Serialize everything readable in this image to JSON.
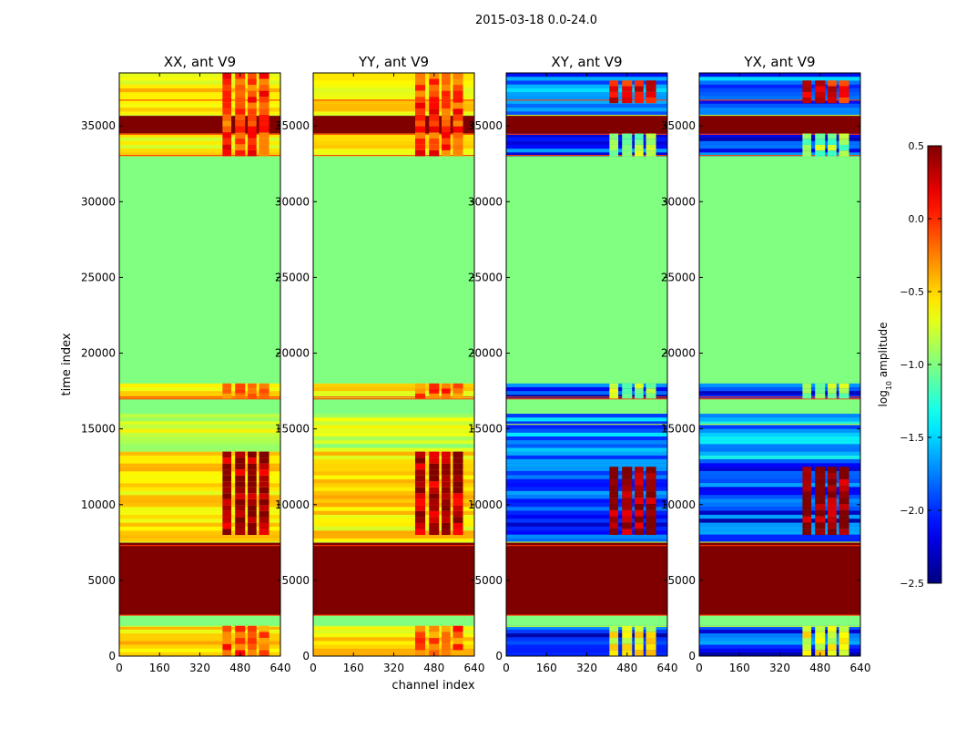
{
  "figure": {
    "suptitle": "2015-03-18 0.0-24.0",
    "ylabel": "time index",
    "xlabel": "channel index"
  },
  "chart_data": {
    "type": "heatmap",
    "colormap": "jet",
    "colorbar": {
      "label": "log10 amplitude",
      "label_main": "log",
      "label_sub": "10",
      "label_tail": " amplitude",
      "range": [
        -2.5,
        0.5
      ],
      "ticks": [
        "0.5",
        "0.0",
        "−0.5",
        "−1.0",
        "−1.5",
        "−2.0",
        "−2.5"
      ],
      "tick_values": [
        0.5,
        0.0,
        -0.5,
        -1.0,
        -1.5,
        -2.0,
        -2.5
      ]
    },
    "xlim": [
      0,
      640
    ],
    "ylim": [
      0,
      38500
    ],
    "xticks": [
      0,
      160,
      320,
      480,
      640
    ],
    "yticks": [
      0,
      5000,
      10000,
      15000,
      20000,
      25000,
      30000,
      35000
    ],
    "xticklabels": [
      "0",
      "160",
      "320",
      "480",
      "640"
    ],
    "yticklabels": [
      "0",
      "5000",
      "10000",
      "15000",
      "20000",
      "25000",
      "30000",
      "35000"
    ],
    "fill_value": -1.0,
    "panels": [
      {
        "title": "XX, ant V9",
        "kind": "auto",
        "bands": [
          {
            "y0": 0,
            "y1": 2000,
            "level": -0.55
          },
          {
            "y0": 2000,
            "y1": 2700,
            "level": -1.0
          },
          {
            "y0": 2700,
            "y1": 7500,
            "level": 0.5
          },
          {
            "y0": 7500,
            "y1": 13500,
            "level": -0.55
          },
          {
            "y0": 13500,
            "y1": 16000,
            "level": -0.8
          },
          {
            "y0": 16000,
            "y1": 17000,
            "level": -1.0
          },
          {
            "y0": 17000,
            "y1": 18000,
            "level": -0.6
          },
          {
            "y0": 18000,
            "y1": 33000,
            "level": -1.0
          },
          {
            "y0": 33000,
            "y1": 34500,
            "level": -0.6
          },
          {
            "y0": 34500,
            "y1": 35700,
            "level": 0.5
          },
          {
            "y0": 35700,
            "y1": 38500,
            "level": -0.55
          }
        ],
        "hot_columns": [
          [
            410,
            445
          ],
          [
            460,
            500
          ],
          [
            510,
            545
          ],
          [
            555,
            595
          ]
        ],
        "hot_rows": [
          [
            8000,
            13500,
            0.35
          ],
          [
            33000,
            38500,
            -0.1
          ],
          [
            0,
            2000,
            -0.2
          ],
          [
            17000,
            18000,
            -0.2
          ]
        ]
      },
      {
        "title": "YY, ant V9",
        "kind": "auto",
        "bands": [
          {
            "y0": 0,
            "y1": 2000,
            "level": -0.55
          },
          {
            "y0": 2000,
            "y1": 2700,
            "level": -1.0
          },
          {
            "y0": 2700,
            "y1": 7500,
            "level": 0.5
          },
          {
            "y0": 7500,
            "y1": 13500,
            "level": -0.55
          },
          {
            "y0": 13500,
            "y1": 16000,
            "level": -0.8
          },
          {
            "y0": 16000,
            "y1": 17000,
            "level": -1.0
          },
          {
            "y0": 17000,
            "y1": 18000,
            "level": -0.6
          },
          {
            "y0": 18000,
            "y1": 33000,
            "level": -1.0
          },
          {
            "y0": 33000,
            "y1": 34500,
            "level": -0.6
          },
          {
            "y0": 34500,
            "y1": 35700,
            "level": 0.5
          },
          {
            "y0": 35700,
            "y1": 38500,
            "level": -0.55
          }
        ],
        "hot_columns": [
          [
            405,
            445
          ],
          [
            460,
            500
          ],
          [
            510,
            545
          ],
          [
            555,
            595
          ]
        ],
        "hot_rows": [
          [
            8000,
            13500,
            0.3
          ],
          [
            33000,
            38500,
            -0.1
          ],
          [
            0,
            2000,
            -0.2
          ],
          [
            17000,
            18000,
            -0.2
          ]
        ]
      },
      {
        "title": "XY, ant V9",
        "kind": "cross",
        "bands": [
          {
            "y0": 0,
            "y1": 2000,
            "level": -2.0
          },
          {
            "y0": 2000,
            "y1": 2700,
            "level": -1.0
          },
          {
            "y0": 2700,
            "y1": 7500,
            "level": 0.5
          },
          {
            "y0": 7500,
            "y1": 13000,
            "level": -2.0
          },
          {
            "y0": 13000,
            "y1": 16000,
            "level": -1.7
          },
          {
            "y0": 16000,
            "y1": 17000,
            "level": -1.0
          },
          {
            "y0": 17000,
            "y1": 18000,
            "level": -2.0
          },
          {
            "y0": 18000,
            "y1": 33000,
            "level": -1.0
          },
          {
            "y0": 33000,
            "y1": 34500,
            "level": -2.0
          },
          {
            "y0": 34500,
            "y1": 35700,
            "level": 0.5
          },
          {
            "y0": 35700,
            "y1": 38500,
            "level": -1.8
          }
        ],
        "hot_columns": [
          [
            410,
            445
          ],
          [
            460,
            500
          ],
          [
            510,
            545
          ],
          [
            555,
            595
          ]
        ],
        "hot_rows": [
          [
            8000,
            12500,
            0.4
          ],
          [
            36500,
            38000,
            0.1
          ],
          [
            0,
            2000,
            -0.7
          ],
          [
            17000,
            18000,
            -1.0
          ],
          [
            33000,
            34500,
            -1.0
          ]
        ]
      },
      {
        "title": "YX, ant V9",
        "kind": "cross",
        "bands": [
          {
            "y0": 0,
            "y1": 2000,
            "level": -2.0
          },
          {
            "y0": 2000,
            "y1": 2700,
            "level": -1.0
          },
          {
            "y0": 2700,
            "y1": 7500,
            "level": 0.5
          },
          {
            "y0": 7500,
            "y1": 13000,
            "level": -2.0
          },
          {
            "y0": 13000,
            "y1": 16000,
            "level": -1.7
          },
          {
            "y0": 16000,
            "y1": 17000,
            "level": -1.0
          },
          {
            "y0": 17000,
            "y1": 18000,
            "level": -2.0
          },
          {
            "y0": 18000,
            "y1": 33000,
            "level": -1.0
          },
          {
            "y0": 33000,
            "y1": 34500,
            "level": -2.0
          },
          {
            "y0": 34500,
            "y1": 35700,
            "level": 0.5
          },
          {
            "y0": 35700,
            "y1": 38500,
            "level": -1.8
          }
        ],
        "hot_columns": [
          [
            410,
            445
          ],
          [
            460,
            500
          ],
          [
            510,
            545
          ],
          [
            555,
            595
          ]
        ],
        "hot_rows": [
          [
            8000,
            12500,
            0.4
          ],
          [
            36500,
            38000,
            0.1
          ],
          [
            0,
            2000,
            -0.7
          ],
          [
            17000,
            18000,
            -1.0
          ],
          [
            33000,
            34500,
            -1.0
          ]
        ]
      }
    ]
  }
}
